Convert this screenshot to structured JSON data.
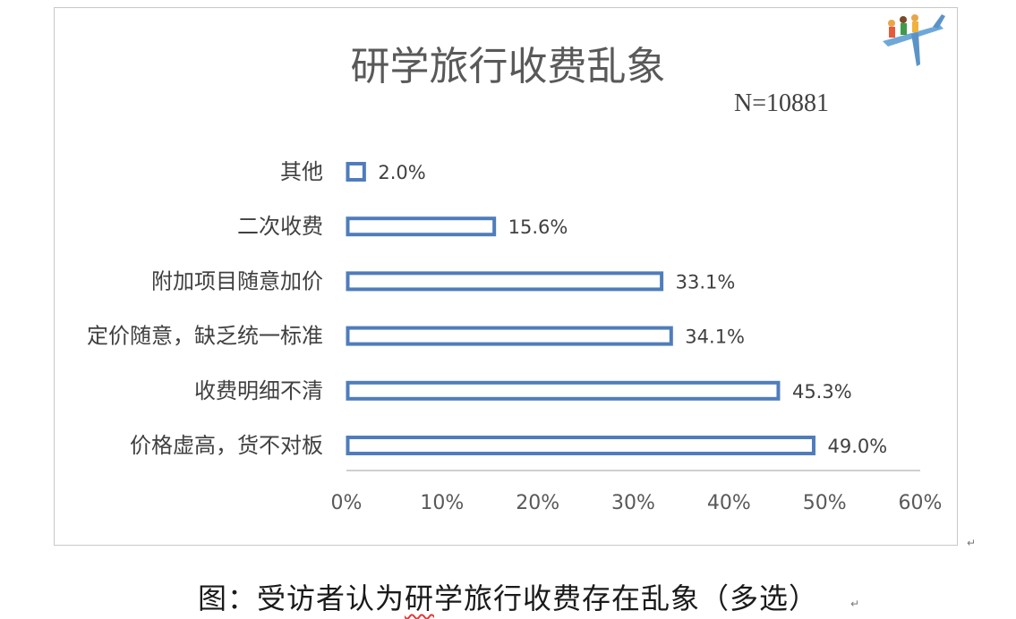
{
  "chart_data": {
    "type": "bar",
    "orientation": "horizontal",
    "title": "研学旅行收费乱象",
    "note": "N=10881",
    "categories": [
      "其他",
      "二次收费",
      "附加项目随意加价",
      "定价随意，缺乏统一标准",
      "收费明细不清",
      "价格虚高，货不对板"
    ],
    "values": [
      2.0,
      15.6,
      33.1,
      34.1,
      45.3,
      49.0
    ],
    "value_labels": [
      "2.0%",
      "15.6%",
      "33.1%",
      "34.1%",
      "45.3%",
      "49.0%"
    ],
    "xlim": [
      0,
      60
    ],
    "x_ticks": [
      "0%",
      "10%",
      "20%",
      "30%",
      "40%",
      "50%",
      "60%"
    ],
    "grid": false,
    "bar_fill": "#ffffff",
    "bar_stroke": "#4f7dbb",
    "axis_color": "#bfbfbf"
  },
  "caption": {
    "prefix": "图：受访者认为",
    "underlined": "研",
    "suffix": "学旅行收费存在乱象（多选）"
  },
  "logo": {
    "icon": "students-on-airplane-logo"
  }
}
